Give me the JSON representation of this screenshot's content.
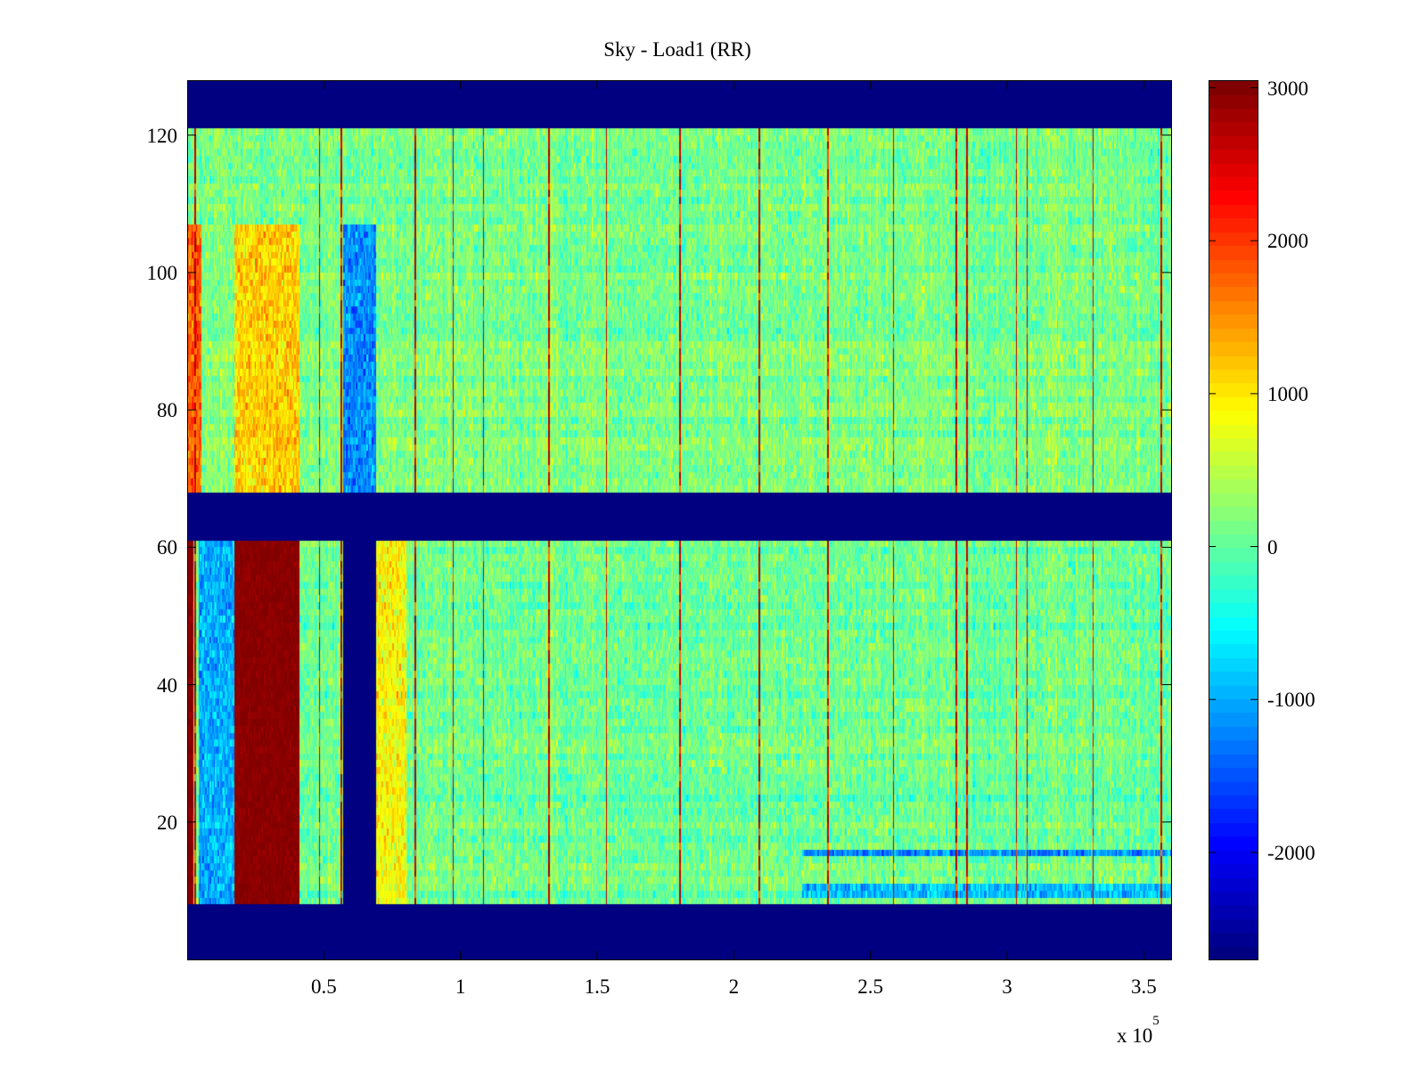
{
  "chart_data": {
    "type": "heatmap",
    "title": "Sky - Load1 (RR)",
    "xlabel": "",
    "ylabel": "",
    "x_multiplier": {
      "base": "x 10",
      "exponent": "5"
    },
    "xlim": [
      0,
      360000
    ],
    "ylim": [
      0,
      128
    ],
    "x_ticks": [
      50000,
      100000,
      150000,
      200000,
      250000,
      300000,
      350000
    ],
    "x_tick_labels": [
      "0.5",
      "1",
      "1.5",
      "2",
      "2.5",
      "3",
      "3.5"
    ],
    "y_ticks": [
      20,
      40,
      60,
      80,
      100,
      120
    ],
    "y_tick_labels": [
      "20",
      "40",
      "60",
      "80",
      "100",
      "120"
    ],
    "colorbar": {
      "colormap": "jet",
      "clim": [
        -2700,
        3050
      ],
      "ticks": [
        3000,
        2000,
        1000,
        0,
        -1000,
        -2000
      ],
      "tick_labels": [
        "3000",
        "2000",
        "1000",
        "0",
        "-1000",
        "-2000"
      ]
    },
    "masked_row_bands": [
      [
        0,
        8
      ],
      [
        61,
        68
      ],
      [
        121,
        128
      ]
    ],
    "masked_column_bands": [
      {
        "x": [
          57000,
          69000
        ],
        "rows": [
          8,
          61
        ]
      }
    ],
    "background_level": {
      "rows_68_121": 150,
      "rows_8_61": 80
    },
    "features": [
      {
        "x": [
          0,
          2000
        ],
        "rows": [
          8,
          61
        ],
        "value": 3000
      },
      {
        "x": [
          17000,
          41000
        ],
        "rows": [
          8,
          61
        ],
        "value": 3000
      },
      {
        "x": [
          17000,
          41000
        ],
        "rows": [
          68,
          107
        ],
        "value": 1150
      },
      {
        "x": [
          57000,
          69000
        ],
        "rows": [
          68,
          107
        ],
        "value": -1200
      },
      {
        "x": [
          4000,
          17000
        ],
        "rows": [
          8,
          61
        ],
        "value": -1000
      },
      {
        "x": [
          69000,
          80000
        ],
        "rows": [
          8,
          61
        ],
        "value": 900
      },
      {
        "x": [
          0,
          5000
        ],
        "rows": [
          68,
          107
        ],
        "value": 1800
      },
      {
        "x": [
          225000,
          360000
        ],
        "rows": [
          15,
          16
        ],
        "value": -1200
      },
      {
        "x": [
          225000,
          360000
        ],
        "rows": [
          9,
          11
        ],
        "value": -900
      }
    ],
    "spike_columns_x": [
      2500,
      48000,
      56000,
      83000,
      97000,
      108000,
      132000,
      153000,
      180000,
      209000,
      234000,
      258000,
      281000,
      285000,
      303000,
      307000,
      331000,
      356000
    ]
  }
}
